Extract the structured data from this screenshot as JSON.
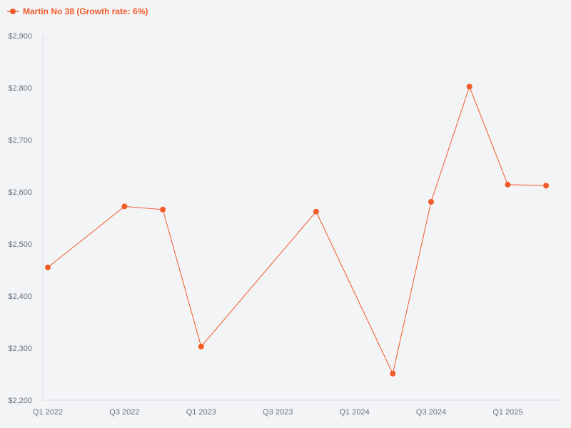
{
  "chart_data": {
    "type": "line",
    "title": "",
    "xlabel": "",
    "ylabel": "",
    "ylim": [
      2200,
      2900
    ],
    "y_ticks": [
      2200,
      2300,
      2400,
      2500,
      2600,
      2700,
      2800,
      2900
    ],
    "y_tick_labels": [
      "$2,200",
      "$2,300",
      "$2,400",
      "$2,500",
      "$2,600",
      "$2,700",
      "$2,800",
      "$2,900"
    ],
    "categories": [
      "Q1 2022",
      "Q2 2022",
      "Q3 2022",
      "Q4 2022",
      "Q1 2023",
      "Q2 2023",
      "Q3 2023",
      "Q4 2023",
      "Q1 2024",
      "Q2 2024",
      "Q3 2024",
      "Q4 2024",
      "Q1 2025",
      "Q2 2025"
    ],
    "x_tick_labels": [
      "Q1 2022",
      "Q3 2022",
      "Q1 2023",
      "Q3 2023",
      "Q1 2024",
      "Q3 2024",
      "Q1 2025"
    ],
    "grid": false,
    "legend_position": "top-left",
    "series": [
      {
        "name": "Martin No 38 (Growth rate: 6%)",
        "color": "#f15a29",
        "points": [
          {
            "x": "Q1 2022",
            "y": 2455
          },
          {
            "x": "Q3 2022",
            "y": 2572
          },
          {
            "x": "Q4 2022",
            "y": 2566
          },
          {
            "x": "Q1 2023",
            "y": 2303
          },
          {
            "x": "Q4 2023",
            "y": 2562
          },
          {
            "x": "Q2 2024",
            "y": 2251
          },
          {
            "x": "Q3 2024",
            "y": 2581
          },
          {
            "x": "Q4 2024",
            "y": 2802
          },
          {
            "x": "Q1 2025",
            "y": 2614
          },
          {
            "x": "Q2 2025",
            "y": 2612
          }
        ]
      }
    ]
  }
}
